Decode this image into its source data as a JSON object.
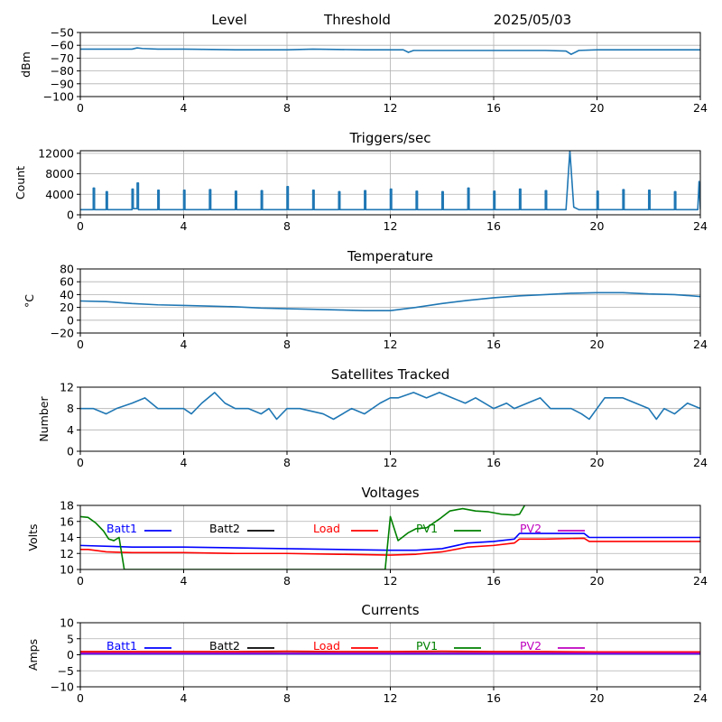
{
  "header": {
    "level": "Level",
    "threshold": "Threshold",
    "date": "2025/05/03"
  },
  "colors": {
    "line": "#1f77b4",
    "grid": "#b0b0b0",
    "batt1": "#0000ff",
    "batt2": "#000000",
    "load": "#ff0000",
    "pv1": "#008000",
    "pv2": "#bf00bf"
  },
  "chart_data": [
    {
      "type": "line",
      "title": "",
      "ylabel": "dBm",
      "xlim": [
        0,
        24
      ],
      "ylim": [
        -100,
        -50
      ],
      "x_ticks": [
        "0",
        "4",
        "8",
        "12",
        "16",
        "20",
        "24"
      ],
      "y_ticks": [
        "−50",
        "−60",
        "−70",
        "−80",
        "−90",
        "−100"
      ],
      "y_tick_values": [
        -50,
        -60,
        -70,
        -80,
        -90,
        -100
      ],
      "grid": true,
      "series": [
        {
          "x": [
            0,
            2,
            2.2,
            2.4,
            3,
            4,
            6,
            8,
            9,
            11,
            12,
            12.5,
            12.7,
            12.9,
            14,
            16,
            18,
            18.8,
            19,
            19.3,
            20,
            22,
            24
          ],
          "y": [
            -63,
            -63,
            -62,
            -62.5,
            -63,
            -63,
            -63.5,
            -63.5,
            -63,
            -63.5,
            -63.5,
            -63.5,
            -65.5,
            -64,
            -64,
            -64,
            -64,
            -64.5,
            -67,
            -64,
            -63.5,
            -63.5,
            -63.5
          ]
        }
      ]
    },
    {
      "type": "line",
      "title": "Triggers/sec",
      "ylabel": "Count",
      "xlim": [
        0,
        24
      ],
      "ylim": [
        0,
        12500
      ],
      "x_ticks": [
        "0",
        "4",
        "8",
        "12",
        "16",
        "20",
        "24"
      ],
      "y_ticks": [
        "0",
        "4000",
        "8000",
        "12000"
      ],
      "y_tick_values": [
        0,
        4000,
        8000,
        12000
      ],
      "grid": true,
      "series": [
        {
          "x": [
            0,
            0.5,
            0.5,
            0.55,
            0.55,
            1,
            1,
            1.05,
            1.05,
            2,
            2,
            2.05,
            2.05,
            2.2,
            2.2,
            2.25,
            2.25,
            3,
            3,
            3.05,
            3.05,
            4,
            4,
            4.05,
            4.05,
            5,
            5,
            5.05,
            5.05,
            6,
            6,
            6.05,
            6.05,
            7,
            7,
            7.05,
            7.05,
            8,
            8,
            8.05,
            8.05,
            9,
            9,
            9.05,
            9.05,
            10,
            10,
            10.05,
            10.05,
            11,
            11,
            11.05,
            11.05,
            12,
            12,
            12.05,
            12.05,
            13,
            13,
            13.05,
            13.05,
            14,
            14,
            14.05,
            14.05,
            15,
            15,
            15.05,
            15.05,
            16,
            16,
            16.05,
            16.05,
            17,
            17,
            17.05,
            17.05,
            18,
            18,
            18.05,
            18.05,
            18.8,
            18.95,
            19.1,
            19.3,
            20,
            20,
            20.05,
            20.05,
            21,
            21,
            21.05,
            21.05,
            22,
            22,
            22.05,
            22.05,
            23,
            23,
            23.05,
            23.05,
            23.9,
            23.95,
            24
          ],
          "y": [
            1000,
            1000,
            5200,
            5200,
            1000,
            1000,
            4500,
            4500,
            1000,
            1000,
            5000,
            5000,
            1200,
            1200,
            6200,
            6200,
            1000,
            1000,
            4800,
            4800,
            1000,
            1000,
            4800,
            4800,
            1000,
            1000,
            4900,
            4900,
            1000,
            1000,
            4600,
            4600,
            1000,
            1000,
            4700,
            4700,
            1000,
            1000,
            5500,
            5500,
            1000,
            1000,
            4800,
            4800,
            1000,
            1000,
            4500,
            4500,
            1000,
            1000,
            4700,
            4700,
            1000,
            1000,
            5000,
            5000,
            1000,
            1000,
            4600,
            4600,
            1000,
            1000,
            4500,
            4500,
            1000,
            1000,
            5200,
            5200,
            1000,
            1000,
            4600,
            4600,
            1000,
            1000,
            5000,
            5000,
            1000,
            1000,
            4700,
            4700,
            1000,
            1000,
            12500,
            1500,
            1000,
            1000,
            4600,
            4600,
            1000,
            1000,
            4900,
            4900,
            1000,
            1000,
            4800,
            4800,
            1000,
            1000,
            4500,
            4500,
            1000,
            1000,
            6500,
            1000
          ]
        }
      ]
    },
    {
      "type": "line",
      "title": "Temperature",
      "ylabel": "°C",
      "xlim": [
        0,
        24
      ],
      "ylim": [
        -20,
        80
      ],
      "x_ticks": [
        "0",
        "4",
        "8",
        "12",
        "16",
        "20",
        "24"
      ],
      "y_ticks": [
        "−20",
        "0",
        "20",
        "40",
        "60",
        "80"
      ],
      "y_tick_values": [
        -20,
        0,
        20,
        40,
        60,
        80
      ],
      "grid": true,
      "series": [
        {
          "x": [
            0,
            1,
            2,
            3,
            4,
            5,
            6,
            7,
            8,
            9,
            10,
            11,
            12,
            13,
            14,
            15,
            16,
            17,
            18,
            19,
            20,
            21,
            22,
            23,
            24
          ],
          "y": [
            30,
            29,
            26,
            24,
            23,
            22,
            21,
            19,
            18,
            17,
            16,
            15,
            15,
            20,
            26,
            31,
            35,
            38,
            40,
            42,
            43,
            43,
            41,
            40,
            37
          ]
        }
      ]
    },
    {
      "type": "line",
      "title": "Satellites Tracked",
      "ylabel": "Number",
      "xlim": [
        0,
        24
      ],
      "ylim": [
        0,
        12
      ],
      "x_ticks": [
        "0",
        "4",
        "8",
        "12",
        "16",
        "20",
        "24"
      ],
      "y_ticks": [
        "0",
        "4",
        "8",
        "12"
      ],
      "y_tick_values": [
        0,
        4,
        8,
        12
      ],
      "grid": true,
      "series": [
        {
          "x": [
            0,
            0.5,
            1,
            1.4,
            2,
            2.5,
            3,
            3.5,
            4,
            4.3,
            4.7,
            5.2,
            5.6,
            6,
            6.5,
            7,
            7.3,
            7.6,
            8,
            8.5,
            9.4,
            9.8,
            10.5,
            11,
            11.6,
            12,
            12.3,
            12.9,
            13.4,
            13.9,
            14.4,
            14.9,
            15.3,
            16,
            16.5,
            16.8,
            17.3,
            17.8,
            18.2,
            19,
            19.4,
            19.7,
            20,
            20.3,
            21,
            21.5,
            22,
            22.3,
            22.6,
            23,
            23.5,
            24
          ],
          "y": [
            8,
            8,
            7,
            8,
            9,
            10,
            8,
            8,
            8,
            7,
            9,
            11,
            9,
            8,
            8,
            7,
            8,
            6,
            8,
            8,
            7,
            6,
            8,
            7,
            9,
            10,
            10,
            11,
            10,
            11,
            10,
            9,
            10,
            8,
            9,
            8,
            9,
            10,
            8,
            8,
            7,
            6,
            8,
            10,
            10,
            9,
            8,
            6,
            8,
            7,
            9,
            8
          ]
        }
      ]
    },
    {
      "type": "line",
      "title": "Voltages",
      "ylabel": "Volts",
      "xlim": [
        0,
        24
      ],
      "ylim": [
        10,
        18
      ],
      "x_ticks": [
        "0",
        "4",
        "8",
        "12",
        "16",
        "20",
        "24"
      ],
      "y_ticks": [
        "10",
        "12",
        "14",
        "16",
        "18"
      ],
      "y_tick_values": [
        10,
        12,
        14,
        16,
        18
      ],
      "grid": true,
      "legend": [
        "Batt1",
        "Batt2",
        "Load",
        "PV1",
        "PV2"
      ],
      "series": [
        {
          "name": "Batt1",
          "x": [
            0,
            2,
            4,
            6,
            8,
            10,
            12,
            13,
            14,
            15,
            16,
            16.8,
            17,
            18,
            19.5,
            19.7,
            20,
            22,
            24
          ],
          "y": [
            13,
            12.8,
            12.8,
            12.7,
            12.6,
            12.5,
            12.4,
            12.4,
            12.6,
            13.3,
            13.5,
            13.8,
            14.5,
            14.5,
            14.5,
            14,
            14,
            14,
            14
          ]
        },
        {
          "name": "Load",
          "x": [
            0,
            0.3,
            1,
            2,
            4,
            6,
            8,
            10,
            12,
            13,
            14,
            15,
            16,
            16.8,
            17,
            18,
            19.5,
            19.7,
            20,
            22,
            24
          ],
          "y": [
            12.5,
            12.5,
            12.2,
            12.1,
            12.1,
            12,
            12,
            11.9,
            11.8,
            11.9,
            12.2,
            12.8,
            13,
            13.3,
            13.8,
            13.8,
            13.9,
            13.5,
            13.5,
            13.5,
            13.5
          ]
        },
        {
          "name": "PV1",
          "x": [
            0,
            0.3,
            0.6,
            0.9,
            1.1,
            1.3,
            1.5,
            1.7,
            11.8,
            12,
            12.3,
            12.7,
            13,
            13.4,
            13.9,
            14.3,
            14.8,
            15.3,
            15.8,
            16.3,
            16.8,
            17,
            17.2
          ],
          "y": [
            16.6,
            16.5,
            15.8,
            14.8,
            13.8,
            13.6,
            14,
            10,
            10,
            16.6,
            13.6,
            14.6,
            15.1,
            15.2,
            16.3,
            17.3,
            17.6,
            17.3,
            17.2,
            16.9,
            16.8,
            16.9,
            18
          ]
        }
      ]
    },
    {
      "type": "line",
      "title": "Currents",
      "ylabel": "Amps",
      "xlim": [
        0,
        24
      ],
      "ylim": [
        -10,
        10
      ],
      "x_ticks": [
        "0",
        "4",
        "8",
        "12",
        "16",
        "20",
        "24"
      ],
      "y_ticks": [
        "−10",
        "−5",
        "0",
        "5",
        "10"
      ],
      "y_tick_values": [
        -10,
        -5,
        0,
        5,
        10
      ],
      "grid": true,
      "legend": [
        "Batt1",
        "Batt2",
        "Load",
        "PV1",
        "PV2"
      ],
      "series": [
        {
          "name": "Batt1",
          "x": [
            0,
            24
          ],
          "y": [
            0.3,
            0.3
          ]
        },
        {
          "name": "PV1",
          "x": [
            0,
            24
          ],
          "y": [
            0.6,
            0.6
          ]
        },
        {
          "name": "Load",
          "x": [
            0,
            2,
            4,
            6,
            8,
            10,
            12,
            14,
            16,
            18,
            20,
            22,
            24
          ],
          "y": [
            1,
            1,
            1,
            1,
            1.1,
            1,
            1,
            1.1,
            1,
            1,
            0.9,
            0.9,
            0.9
          ]
        },
        {
          "name": "PV2",
          "x": [
            0,
            24
          ],
          "y": [
            0.5,
            0.5
          ]
        }
      ]
    }
  ]
}
